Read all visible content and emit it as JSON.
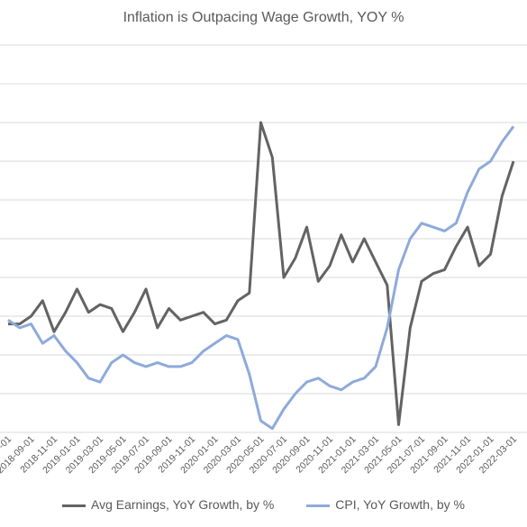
{
  "chart_data": {
    "type": "line",
    "title": "Inflation is Outpacing Wage Growth, YOY %",
    "x": [
      "2018-07-01",
      "2018-08-01",
      "2018-09-01",
      "2018-10-01",
      "2018-11-01",
      "2018-12-01",
      "2019-01-01",
      "2019-02-01",
      "2019-03-01",
      "2019-04-01",
      "2019-05-01",
      "2019-06-01",
      "2019-07-01",
      "2019-08-01",
      "2019-09-01",
      "2019-10-01",
      "2019-11-01",
      "2019-12-01",
      "2020-01-01",
      "2020-02-01",
      "2020-03-01",
      "2020-04-01",
      "2020-05-01",
      "2020-06-01",
      "2020-07-01",
      "2020-08-01",
      "2020-09-01",
      "2020-10-01",
      "2020-11-01",
      "2020-12-01",
      "2021-01-01",
      "2021-02-01",
      "2021-03-01",
      "2021-04-01",
      "2021-05-01",
      "2021-06-01",
      "2021-07-01",
      "2021-08-01",
      "2021-09-01",
      "2021-10-01",
      "2021-11-01",
      "2021-12-01",
      "2022-01-01",
      "2022-02-01",
      "2022-03-01"
    ],
    "tick_labels": [
      "2018-07-01",
      "2018-09-01",
      "2018-11-01",
      "2019-01-01",
      "2019-03-01",
      "2019-05-01",
      "2019-07-01",
      "2019-09-01",
      "2019-11-01",
      "2020-01-01",
      "2020-03-01",
      "2020-05-01",
      "2020-07-01",
      "2020-09-01",
      "2020-11-01",
      "2021-01-01",
      "2021-03-01",
      "2021-05-01",
      "2021-07-01",
      "2021-09-01",
      "2021-11-01",
      "2022-01-01",
      "2022-03-01"
    ],
    "series": [
      {
        "name": "Avg Earnings, YoY Growth, by %",
        "color": "#636363",
        "values": [
          2.8,
          2.8,
          3.0,
          3.4,
          2.6,
          3.1,
          3.7,
          3.1,
          3.3,
          3.2,
          2.6,
          3.1,
          3.7,
          2.7,
          3.2,
          2.9,
          3.0,
          3.1,
          2.8,
          2.9,
          3.4,
          3.6,
          8.0,
          7.1,
          4.0,
          4.5,
          5.3,
          3.9,
          4.3,
          5.1,
          4.4,
          5.0,
          4.4,
          3.8,
          0.2,
          2.7,
          3.9,
          4.1,
          4.2,
          4.8,
          5.3,
          4.3,
          4.6,
          6.1,
          7.0
        ]
      },
      {
        "name": "CPI, YoY Growth, by %",
        "color": "#8eaadb",
        "values": [
          2.9,
          2.7,
          2.8,
          2.3,
          2.5,
          2.1,
          1.8,
          1.4,
          1.3,
          1.8,
          2.0,
          1.8,
          1.7,
          1.8,
          1.7,
          1.7,
          1.8,
          2.1,
          2.3,
          2.5,
          2.4,
          1.5,
          0.3,
          0.1,
          0.6,
          1.0,
          1.3,
          1.4,
          1.2,
          1.1,
          1.3,
          1.4,
          1.7,
          2.7,
          4.2,
          5.0,
          5.4,
          5.3,
          5.2,
          5.4,
          6.2,
          6.8,
          7.0,
          7.5,
          7.9
        ]
      }
    ],
    "ylim": [
      -0.5,
      10.5
    ],
    "grid": true,
    "legend": "bottom"
  }
}
